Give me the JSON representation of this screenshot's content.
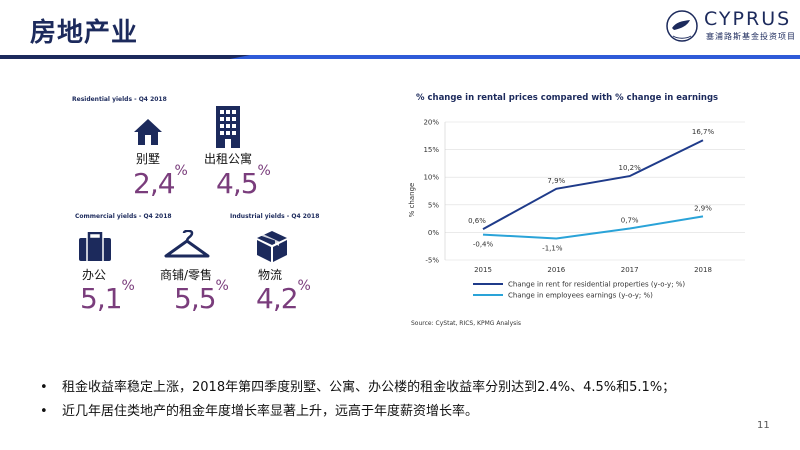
{
  "header": {
    "title": "房地产业",
    "logo_text": "CYPRUS",
    "logo_subtitle": "塞浦路斯基金投资项目"
  },
  "sections": {
    "residential_heading": "Residential yields - Q4 2018",
    "commercial_heading": "Commercial yields - Q4 2018",
    "industrial_heading": "Industrial yields - Q4 2018"
  },
  "yields": [
    {
      "label": "别墅",
      "value": "2,4",
      "icon": "house-icon"
    },
    {
      "label": "出租公寓",
      "value": "4,5",
      "icon": "apartment-building-icon"
    },
    {
      "label": "办公",
      "value": "5,1",
      "icon": "briefcase-icon"
    },
    {
      "label": "商铺/零售",
      "value": "5,5",
      "icon": "clothes-hanger-icon"
    },
    {
      "label": "物流",
      "value": "4,2",
      "icon": "package-box-icon"
    }
  ],
  "percent_sign": "%",
  "chart_data": {
    "type": "line",
    "title": "% change in rental prices compared with % change in earnings",
    "ylabel": "% change",
    "xlabel": "",
    "x": [
      "2015",
      "2016",
      "2017",
      "2018"
    ],
    "y_ticks": [
      "20%",
      "15%",
      "10%",
      "5%",
      "0%",
      "-5%"
    ],
    "ylim": [
      -5,
      20
    ],
    "grid": true,
    "legend_position": "bottom",
    "series": [
      {
        "name": "Change in rent for residential properties (y-o-y; %)",
        "values": [
          0.6,
          7.9,
          10.2,
          16.7
        ],
        "labels": [
          "0,6%",
          "7,9%",
          "10,2%",
          "16,7%"
        ],
        "color": "#1f3b8a"
      },
      {
        "name": "Change in employees earnings (y-o-y; %)",
        "values": [
          -0.4,
          -1.1,
          0.7,
          2.9
        ],
        "labels": [
          "-0,4%",
          "-1,1%",
          "0,7%",
          "2,9%"
        ],
        "color": "#2aa3d8"
      }
    ]
  },
  "source": "Source: CyStat, RICS, KPMG Analysis",
  "bullets": [
    "租金收益率稳定上涨，2018年第四季度别墅、公寓、办公楼的租金收益率分别达到2.4%、4.5%和5.1%；",
    "近几年居住类地产的租金年度增长率显著上升，远高于年度薪资增长率。"
  ],
  "bullet_marker": "•",
  "page_number": "11",
  "colors": {
    "navy": "#1c2a5c",
    "purple_value": "#7a3d7c",
    "rule_start": "#1c2a5c",
    "rule_end": "#2e5bd8"
  }
}
